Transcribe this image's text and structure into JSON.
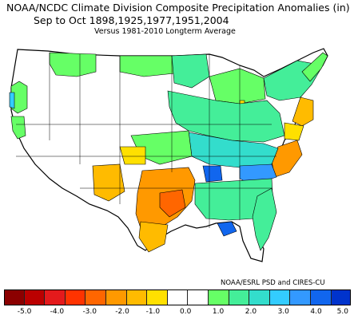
{
  "title": {
    "line1": "NOAA/NCDC Climate Division Composite Precipitation Anomalies (in)",
    "line2": "Sep to Oct   1898,1925,1977,1951,2004",
    "subtitle": "Versus 1981-2010 Longterm Average"
  },
  "credit": "NOAA/ESRL PSD and CIRES-CU",
  "colorbar": {
    "colors": [
      "#8b0000",
      "#bb0000",
      "#e41a1c",
      "#ff3300",
      "#ff6600",
      "#ff9900",
      "#ffbb00",
      "#ffe000",
      "#ffffff",
      "#ffffff",
      "#66ff66",
      "#44ee99",
      "#33ddcc",
      "#33ccff",
      "#3399ff",
      "#1166ee",
      "#0033cc"
    ],
    "tick_labels": [
      "-5.0",
      "-4.0",
      "-3.0",
      "-2.0",
      "-1.0",
      "0.0",
      "1.0",
      "2.0",
      "3.0",
      "4.0",
      "5.0"
    ]
  },
  "map_colors": {
    "ocean": "#ffffff",
    "land_neutral": "#ffffff",
    "border": "#000000"
  }
}
